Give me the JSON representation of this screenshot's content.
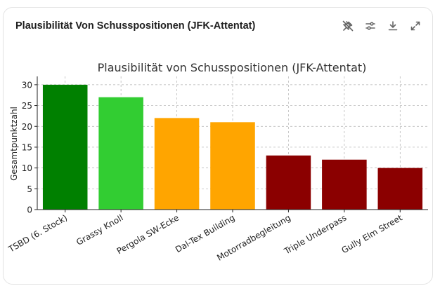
{
  "card": {
    "title": "Plausibilität Von Schusspositionen (JFK-Attentat)",
    "icons": [
      "pin-off-icon",
      "sliders-icon",
      "download-icon",
      "expand-icon"
    ]
  },
  "chart_data": {
    "type": "bar",
    "title": "Plausibilität von Schusspositionen (JFK-Attentat)",
    "xlabel": "",
    "ylabel": "Gesamtpunktzahl",
    "ylim": [
      0,
      32
    ],
    "yticks": [
      0,
      5,
      10,
      15,
      20,
      25,
      30
    ],
    "grid": true,
    "categories": [
      "TSBD (6. Stock)",
      "Grassy Knoll",
      "Pergola SW-Ecke",
      "Dal-Tex Building",
      "Motorradbegleitung",
      "Triple Underpass",
      "Gully Elm Street"
    ],
    "values": [
      30,
      27,
      22,
      21,
      13,
      12,
      10
    ],
    "colors": [
      "#008000",
      "#32cd32",
      "#ffa500",
      "#ffa500",
      "#8b0000",
      "#8b0000",
      "#8b0000"
    ]
  }
}
